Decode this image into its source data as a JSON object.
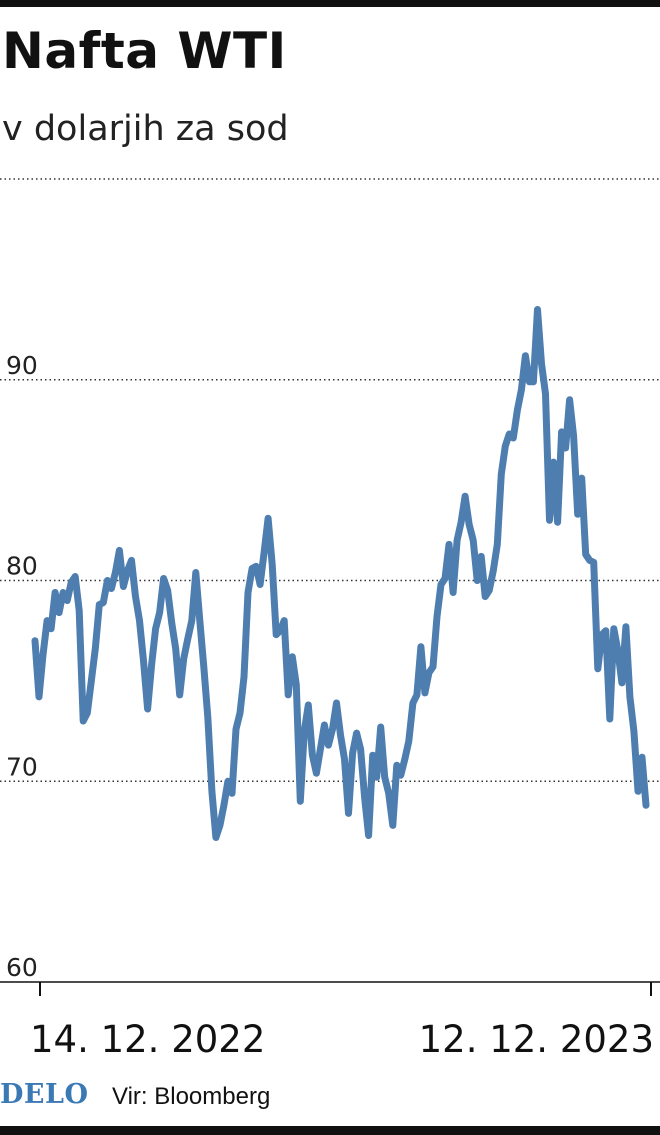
{
  "header": {
    "title": "Nafta WTI",
    "subtitle": "v dolarjih za sod"
  },
  "footer": {
    "logo": "DELO",
    "source": "Vir: Bloomberg"
  },
  "colors": {
    "line": "#4e7eaf",
    "logo": "#3b79b5",
    "grid": "#333333"
  },
  "chart_data": {
    "type": "line",
    "title": "Nafta WTI",
    "subtitle": "v dolarjih za sod",
    "xlabel": "",
    "ylabel": "",
    "ylim": [
      60,
      100
    ],
    "yticks": [
      60,
      70,
      80,
      90
    ],
    "ytick_labels": [
      "60",
      "70",
      "80",
      "90"
    ],
    "xtick_labels": [
      "14. 12. 2022",
      "12. 12. 2023"
    ],
    "grid": "horizontal dotted",
    "series": [
      {
        "values": [
          77.0,
          74.2,
          76.3,
          78.0,
          77.6,
          79.4,
          78.4,
          79.4,
          79.0,
          79.9,
          80.2,
          78.5,
          73.0,
          73.4,
          75.0,
          76.6,
          78.8,
          78.9,
          80.0,
          79.6,
          80.4,
          81.5,
          79.7,
          80.5,
          81.0,
          79.2,
          78.0,
          76.0,
          73.6,
          75.8,
          77.6,
          78.4,
          80.1,
          79.5,
          77.9,
          76.6,
          74.3,
          76.1,
          77.1,
          78.0,
          80.4,
          78.0,
          75.7,
          73.2,
          69.5,
          67.2,
          67.8,
          68.8,
          70.0,
          69.4,
          72.6,
          73.4,
          75.2,
          79.4,
          80.6,
          80.7,
          79.8,
          81.4,
          83.1,
          80.8,
          77.3,
          77.5,
          78.0,
          74.3,
          76.2,
          74.8,
          69.0,
          72.5,
          73.8,
          71.3,
          70.4,
          71.6,
          72.8,
          71.8,
          72.6,
          73.9,
          72.3,
          71.1,
          68.4,
          71.4,
          72.4,
          71.6,
          69.2,
          67.3,
          71.3,
          70.2,
          72.7,
          70.2,
          69.4,
          67.8,
          70.8,
          70.3,
          71.1,
          72.0,
          73.9,
          74.3,
          76.7,
          74.4,
          75.4,
          75.7,
          78.2,
          79.8,
          80.1,
          81.8,
          79.4,
          82.0,
          82.9,
          84.2,
          82.8,
          82.0,
          80.0,
          81.2,
          79.2,
          79.5,
          80.5,
          81.8,
          85.3,
          86.7,
          87.3,
          87.1,
          88.5,
          89.5,
          91.2,
          89.9,
          89.9,
          93.5,
          90.8,
          89.3,
          83.0,
          85.9,
          82.9,
          87.4,
          86.6,
          89.0,
          87.2,
          83.3,
          85.1,
          81.3,
          81.0,
          80.9,
          75.6,
          77.3,
          77.5,
          73.1,
          77.6,
          76.5,
          74.9,
          77.7,
          74.2,
          72.5,
          69.5,
          71.2,
          68.8
        ]
      }
    ]
  }
}
